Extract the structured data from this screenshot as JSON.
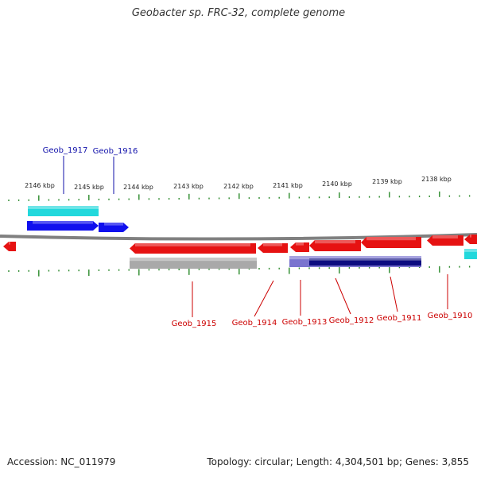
{
  "title": "Geobacter sp. FRC-32, complete genome",
  "footer": {
    "accession": "Accession: NC_011979",
    "summary": "Topology: circular; Length: 4,304,501 bp; Genes: 3,855"
  },
  "colors": {
    "forward_gene": "#1010ee",
    "forward_cds": "#22d8dc",
    "reverse_gene": "#e61212",
    "reverse_cds_grey": "#a9a9a9",
    "reverse_cds_purple": "#7a74cf",
    "reverse_cds_navy": "#0c0c80",
    "backbone": "#808080",
    "tick": "#2a8a2a",
    "label_forward": "#1010aa",
    "label_reverse": "#cc0000"
  },
  "scale_labels": [
    "2146 kbp",
    "2145 kbp",
    "2144 kbp",
    "2143 kbp",
    "2142 kbp",
    "2141 kbp",
    "2140 kbp",
    "2139 kbp",
    "2138 kbp"
  ],
  "genes": [
    {
      "name": "Geob_1917",
      "strand": "forward"
    },
    {
      "name": "Geob_1916",
      "strand": "forward"
    },
    {
      "name": "Geob_1915",
      "strand": "reverse"
    },
    {
      "name": "Geob_1914",
      "strand": "reverse"
    },
    {
      "name": "Geob_1913",
      "strand": "reverse"
    },
    {
      "name": "Geob_1912",
      "strand": "reverse"
    },
    {
      "name": "Geob_1911",
      "strand": "reverse"
    },
    {
      "name": "Geob_1910",
      "strand": "reverse"
    }
  ]
}
